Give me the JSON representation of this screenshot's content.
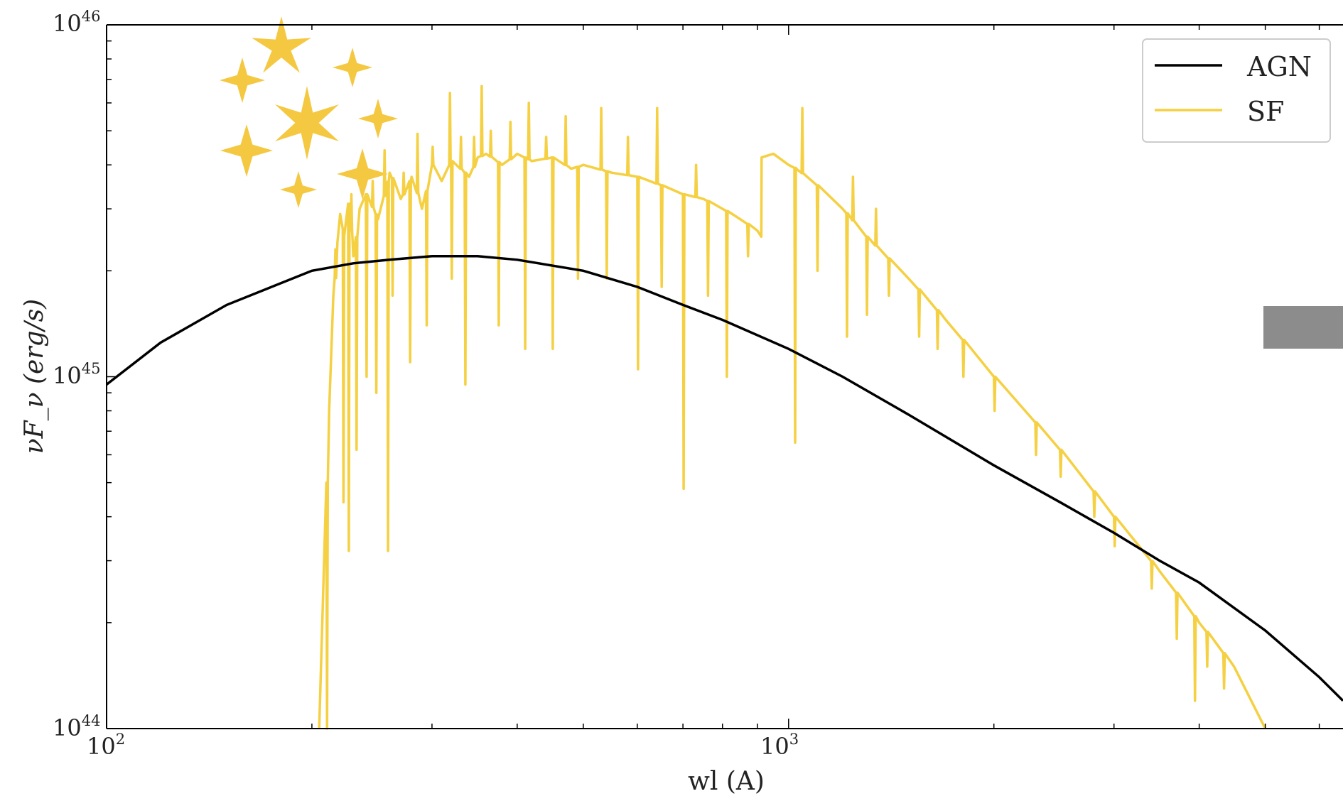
{
  "chart_data": {
    "type": "line",
    "xlabel": "wl (A)",
    "ylabel": "νF_ν (erg/s)",
    "x_scale": "log",
    "y_scale": "log",
    "xlim": [
      100,
      6500
    ],
    "ylim": [
      1e+44,
      1e+46
    ],
    "x_ticks": [
      {
        "base": "10",
        "exp": "2",
        "value": 100
      },
      {
        "base": "10",
        "exp": "3",
        "value": 1000
      }
    ],
    "y_ticks": [
      {
        "base": "10",
        "exp": "44",
        "value": 1e+44
      },
      {
        "base": "10",
        "exp": "45",
        "value": 1e+45
      },
      {
        "base": "10",
        "exp": "46",
        "value": 1e+46
      }
    ],
    "legend": {
      "position": "top-right",
      "entries": [
        "AGN",
        "SF"
      ]
    },
    "colors": {
      "AGN": "#000000",
      "SF": "#f5d042",
      "decor": "#f5c842",
      "grey_patch": "#8c8c8c"
    },
    "series": [
      {
        "name": "AGN",
        "x": [
          100,
          120,
          150,
          200,
          230,
          260,
          300,
          350,
          400,
          500,
          600,
          700,
          800,
          1000,
          1200,
          1500,
          2000,
          2500,
          3000,
          3500,
          4000,
          5000,
          6000,
          6500
        ],
        "y": [
          9.5e+44,
          1.25e+45,
          1.6e+45,
          2e+45,
          2.1e+45,
          2.15e+45,
          2.2e+45,
          2.2e+45,
          2.15e+45,
          2e+45,
          1.8e+45,
          1.6e+45,
          1.45e+45,
          1.2e+45,
          1e+45,
          7.8e+44,
          5.6e+44,
          4.4e+44,
          3.6e+44,
          3e+44,
          2.6e+44,
          1.9e+44,
          1.4e+44,
          1.2e+44
        ]
      },
      {
        "name": "SF",
        "x": [
          205,
          210,
          212,
          215,
          218,
          220,
          223,
          226,
          230,
          235,
          240,
          250,
          260,
          270,
          280,
          290,
          300,
          310,
          320,
          330,
          340,
          350,
          360,
          380,
          400,
          420,
          450,
          480,
          500,
          550,
          600,
          650,
          700,
          750,
          800,
          850,
          900,
          912,
          913,
          950,
          1000,
          1026,
          1100,
          1200,
          1300,
          1500,
          1700,
          2000,
          2500,
          3000,
          3500,
          4000,
          4500,
          5000
        ],
        "y": [
          1e+44,
          5e+44,
          8e+44,
          1.7e+45,
          2.4e+45,
          2.9e+45,
          2.5e+45,
          3.1e+45,
          2.2e+45,
          3e+45,
          3.3e+45,
          2.8e+45,
          3.8e+45,
          3.2e+45,
          3.7e+45,
          3e+45,
          4e+45,
          3.6e+45,
          4.1e+45,
          3.9e+45,
          3.7e+45,
          4.2e+45,
          4.3e+45,
          4e+45,
          4.3e+45,
          4.1e+45,
          4.2e+45,
          3.9e+45,
          4e+45,
          3.8e+45,
          3.7e+45,
          3.5e+45,
          3.3e+45,
          3.2e+45,
          3e+45,
          2.8e+45,
          2.6e+45,
          2.5e+45,
          4.2e+45,
          4.3e+45,
          4e+45,
          3.9e+45,
          3.5e+45,
          3e+45,
          2.5e+45,
          1.9e+45,
          1.45e+45,
          1e+45,
          6.2e+44,
          4e+44,
          2.8e+44,
          2e+44,
          1.5e+44,
          1e+44
        ]
      }
    ],
    "absorption_dips": [
      {
        "x": 210,
        "y": 1e+44
      },
      {
        "x": 222,
        "y": 4.4e+44
      },
      {
        "x": 226,
        "y": 3.2e+44
      },
      {
        "x": 232,
        "y": 6.2e+44
      },
      {
        "x": 240,
        "y": 1e+45
      },
      {
        "x": 248,
        "y": 9e+44
      },
      {
        "x": 258,
        "y": 3.2e+44
      },
      {
        "x": 262,
        "y": 1.7e+45
      },
      {
        "x": 278,
        "y": 1.1e+45
      },
      {
        "x": 294,
        "y": 1.4e+45
      },
      {
        "x": 320,
        "y": 1.9e+45
      },
      {
        "x": 335,
        "y": 9.5e+44
      },
      {
        "x": 375,
        "y": 1.4e+45
      },
      {
        "x": 410,
        "y": 1.2e+45
      },
      {
        "x": 450,
        "y": 1.2e+45
      },
      {
        "x": 490,
        "y": 1.9e+45
      },
      {
        "x": 540,
        "y": 1.9e+45
      },
      {
        "x": 600,
        "y": 1.05e+45
      },
      {
        "x": 650,
        "y": 1.8e+45
      },
      {
        "x": 700,
        "y": 4.8e+44
      },
      {
        "x": 760,
        "y": 1.7e+45
      },
      {
        "x": 810,
        "y": 1e+45
      },
      {
        "x": 870,
        "y": 2.2e+45
      },
      {
        "x": 1020,
        "y": 6.5e+44
      },
      {
        "x": 1100,
        "y": 2e+45
      },
      {
        "x": 1215,
        "y": 1.3e+45
      },
      {
        "x": 1300,
        "y": 1.5e+45
      },
      {
        "x": 1400,
        "y": 1.7e+45
      },
      {
        "x": 1550,
        "y": 1.3e+45
      },
      {
        "x": 1650,
        "y": 1.2e+45
      },
      {
        "x": 1800,
        "y": 1e+45
      },
      {
        "x": 2000,
        "y": 8e+44
      },
      {
        "x": 2300,
        "y": 6e+44
      },
      {
        "x": 2500,
        "y": 5.2e+44
      },
      {
        "x": 2800,
        "y": 4e+44
      },
      {
        "x": 3000,
        "y": 3.3e+44
      },
      {
        "x": 3400,
        "y": 2.5e+44
      },
      {
        "x": 3700,
        "y": 1.8e+44
      },
      {
        "x": 3934,
        "y": 1.2e+44
      },
      {
        "x": 4100,
        "y": 1.5e+44
      },
      {
        "x": 4340,
        "y": 1.3e+44
      }
    ],
    "emission_spikes": [
      {
        "x": 216,
        "y": 2.3e+45
      },
      {
        "x": 228,
        "y": 3.3e+45
      },
      {
        "x": 245,
        "y": 3.6e+45
      },
      {
        "x": 255,
        "y": 4.4e+45
      },
      {
        "x": 272,
        "y": 3.8e+45
      },
      {
        "x": 285,
        "y": 4.9e+45
      },
      {
        "x": 300,
        "y": 4.5e+45
      },
      {
        "x": 318,
        "y": 6.4e+45
      },
      {
        "x": 330,
        "y": 4.8e+45
      },
      {
        "x": 345,
        "y": 4.8e+45
      },
      {
        "x": 354,
        "y": 6.7e+45
      },
      {
        "x": 365,
        "y": 5e+45
      },
      {
        "x": 390,
        "y": 5.3e+45
      },
      {
        "x": 415,
        "y": 6e+45
      },
      {
        "x": 440,
        "y": 4.8e+45
      },
      {
        "x": 470,
        "y": 5.5e+45
      },
      {
        "x": 530,
        "y": 5.8e+45
      },
      {
        "x": 580,
        "y": 4.8e+45
      },
      {
        "x": 640,
        "y": 5.8e+45
      },
      {
        "x": 730,
        "y": 4e+45
      },
      {
        "x": 1045,
        "y": 5.8e+45
      },
      {
        "x": 1240,
        "y": 3.7e+45
      },
      {
        "x": 1340,
        "y": 3e+45
      }
    ]
  },
  "decor": {
    "stars_label": "star-cluster-icon"
  }
}
